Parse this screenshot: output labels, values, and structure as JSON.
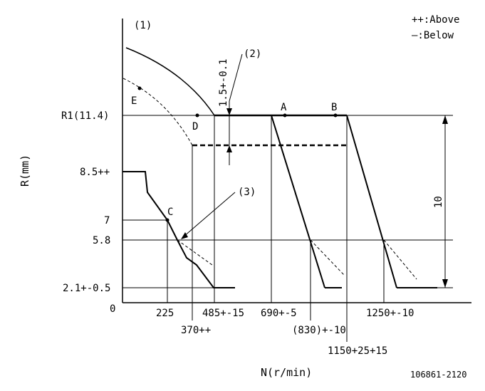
{
  "legend": {
    "above": "++:Above",
    "below": "—:Below"
  },
  "markers": {
    "panel": "(1)",
    "stroke_marker": "(2)",
    "cross_marker": "(3)"
  },
  "points": {
    "A": "A",
    "B": "B",
    "C": "C",
    "D": "D",
    "E": "E"
  },
  "y_ticks": {
    "r1": "R1(11.4)",
    "v85": "8.5++",
    "v7": "7",
    "v58": "5.8",
    "v21": "2.1+-0.5",
    "zero": "0"
  },
  "x_ticks": {
    "n225": "225",
    "n370": "370++",
    "n485": "485+-15",
    "n690": "690+-5",
    "n830": "(830)+-10",
    "n1150": "1150+25+15",
    "n1250": "1250+-10"
  },
  "dimensions": {
    "stroke": "1.5+-0.1",
    "range": "10"
  },
  "axes": {
    "y_title": "R(mm)",
    "x_title": "N(r/min)"
  },
  "drawing_number": "106861-2120"
}
